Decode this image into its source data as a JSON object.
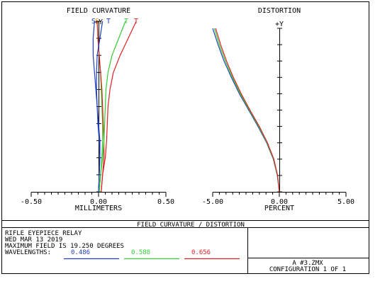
{
  "colors": {
    "blue": "#1f3fbf",
    "green": "#33cc33",
    "red": "#e02020",
    "orange": "#e0a020"
  },
  "chart_data": [
    {
      "type": "line",
      "title": "FIELD CURVATURE",
      "xlabel": "MILLIMETERS",
      "xlim": [
        -0.5,
        0.5
      ],
      "ylim": [
        0,
        1
      ],
      "x_ticks": [
        "-0.50",
        "0.00",
        "0.50"
      ],
      "field_axis_label": "+Y",
      "curve_labels": [
        {
          "text": "S",
          "color": "#1f3fbf"
        },
        {
          "text": "S",
          "color": "#e0a020"
        },
        {
          "text": "T",
          "color": "#1f3fbf"
        },
        {
          "text": "T",
          "color": "#33cc33"
        },
        {
          "text": "T",
          "color": "#e02020"
        }
      ],
      "series": [
        {
          "color": "#1f3fbf",
          "x": [
            0.0,
            0.005,
            0.01,
            0.005,
            -0.005,
            -0.01,
            -0.02,
            -0.03,
            -0.04,
            -0.04,
            -0.03
          ],
          "y": [
            0,
            0.1,
            0.2,
            0.3,
            0.4,
            0.5,
            0.6,
            0.7,
            0.8,
            0.9,
            1.0
          ]
        },
        {
          "color": "#33cc33",
          "x": [
            0.005,
            0.015,
            0.025,
            0.03,
            0.03,
            0.025,
            0.02,
            0.015,
            0.005,
            -0.005,
            -0.01
          ],
          "y": [
            0,
            0.1,
            0.2,
            0.3,
            0.4,
            0.5,
            0.6,
            0.7,
            0.8,
            0.9,
            1.0
          ]
        },
        {
          "color": "#e02020",
          "x": [
            0.02,
            0.03,
            0.04,
            0.04,
            0.035,
            0.03,
            0.025,
            0.015,
            0.005,
            -0.005,
            -0.01
          ],
          "y": [
            0,
            0.1,
            0.2,
            0.3,
            0.4,
            0.5,
            0.6,
            0.7,
            0.8,
            0.9,
            1.0
          ]
        },
        {
          "color": "#1f3fbf",
          "x": [
            0.0,
            0.005,
            0.01,
            0.01,
            0.0,
            -0.01,
            -0.015,
            -0.015,
            -0.01,
            0.01,
            0.03
          ],
          "y": [
            0,
            0.1,
            0.2,
            0.3,
            0.4,
            0.5,
            0.6,
            0.7,
            0.8,
            0.9,
            1.0
          ]
        },
        {
          "color": "#33cc33",
          "x": [
            0.005,
            0.015,
            0.03,
            0.04,
            0.045,
            0.05,
            0.055,
            0.07,
            0.1,
            0.15,
            0.2
          ],
          "y": [
            0,
            0.1,
            0.2,
            0.3,
            0.4,
            0.5,
            0.6,
            0.7,
            0.8,
            0.9,
            1.0
          ]
        },
        {
          "color": "#e02020",
          "x": [
            0.02,
            0.03,
            0.05,
            0.06,
            0.065,
            0.07,
            0.085,
            0.11,
            0.16,
            0.22,
            0.28
          ],
          "y": [
            0,
            0.1,
            0.2,
            0.3,
            0.4,
            0.5,
            0.6,
            0.7,
            0.8,
            0.9,
            1.0
          ]
        }
      ]
    },
    {
      "type": "line",
      "title": "DISTORTION",
      "xlabel": "PERCENT",
      "xlim": [
        -5.0,
        5.0
      ],
      "ylim": [
        0,
        1
      ],
      "x_ticks": [
        "-5.00",
        "0.00",
        "5.00"
      ],
      "field_axis_label": "+Y",
      "series": [
        {
          "color": "#1f3fbf",
          "x": [
            0,
            -0.15,
            -0.45,
            -0.95,
            -1.6,
            -2.3,
            -3.0,
            -3.6,
            -4.15,
            -4.6,
            -5.0
          ],
          "y": [
            0,
            0.1,
            0.2,
            0.3,
            0.4,
            0.5,
            0.6,
            0.7,
            0.8,
            0.9,
            1.0
          ]
        },
        {
          "color": "#33cc33",
          "x": [
            0,
            -0.14,
            -0.43,
            -0.92,
            -1.55,
            -2.25,
            -2.93,
            -3.52,
            -4.05,
            -4.5,
            -4.88
          ],
          "y": [
            0,
            0.1,
            0.2,
            0.3,
            0.4,
            0.5,
            0.6,
            0.7,
            0.8,
            0.9,
            1.0
          ]
        },
        {
          "color": "#e02020",
          "x": [
            0,
            -0.13,
            -0.41,
            -0.89,
            -1.5,
            -2.2,
            -2.86,
            -3.45,
            -3.96,
            -4.4,
            -4.78
          ],
          "y": [
            0,
            0.1,
            0.2,
            0.3,
            0.4,
            0.5,
            0.6,
            0.7,
            0.8,
            0.9,
            1.0
          ]
        }
      ]
    }
  ],
  "footer": {
    "banner": "FIELD CURVATURE / DISTORTION",
    "line1": "RIFLE EYEPIECE RELAY",
    "line2": "WED MAR 13 2019",
    "line3": "MAXIMUM FIELD IS 19.250 DEGREES",
    "wavelengths_label": "WAVELENGTHS:",
    "wavelengths": [
      {
        "value": "0.486",
        "color": "#1f3fbf"
      },
      {
        "value": "0.588",
        "color": "#33cc33"
      },
      {
        "value": "0.656",
        "color": "#e02020"
      }
    ],
    "file": "A  #3.ZMX",
    "configuration": "CONFIGURATION 1 OF 1"
  }
}
